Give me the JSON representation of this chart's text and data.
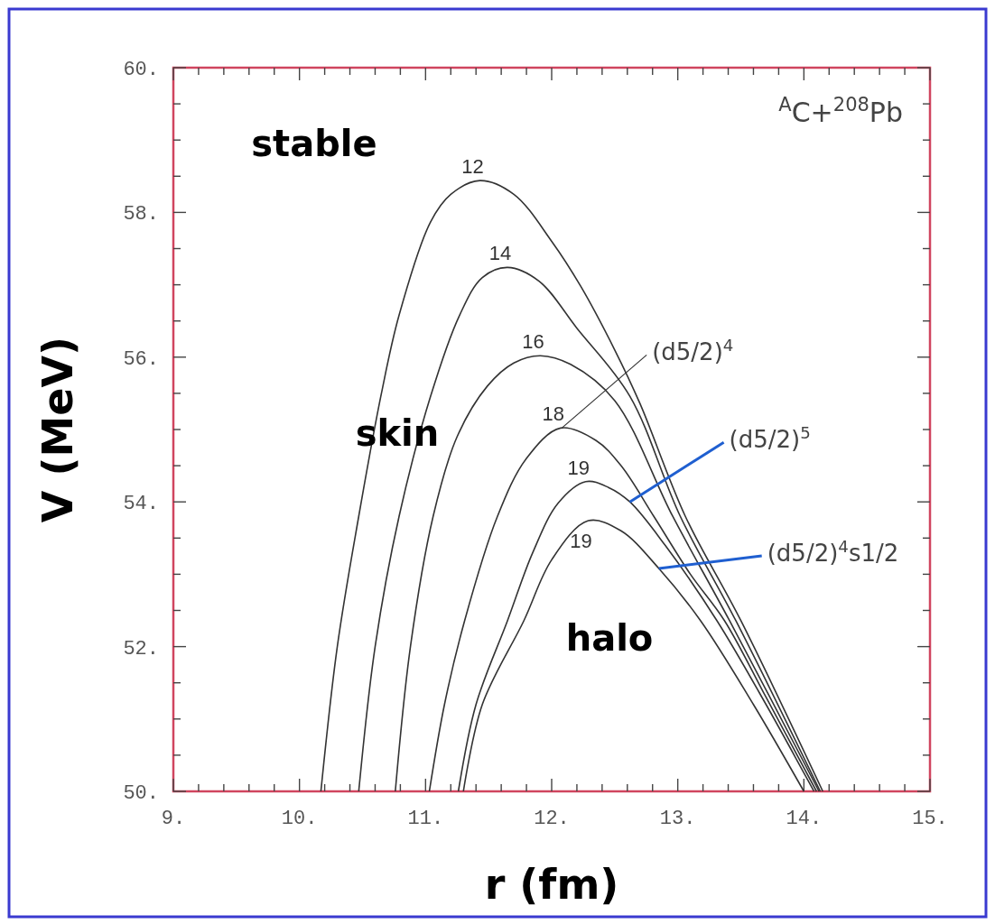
{
  "chart_data": {
    "type": "line",
    "title": "$^{A}$C+$^{208}$Pb",
    "xlabel": "r (fm)",
    "ylabel": "V (MeV)",
    "xlim": [
      9,
      15
    ],
    "ylim": [
      50,
      60
    ],
    "xticks": [
      {
        "value": 9,
        "label": "9."
      },
      {
        "value": 9.2,
        "label": null
      },
      {
        "value": 9.4,
        "label": null
      },
      {
        "value": 9.6,
        "label": null
      },
      {
        "value": 9.8,
        "label": null
      },
      {
        "value": 10,
        "label": "10."
      },
      {
        "value": 10.2,
        "label": null
      },
      {
        "value": 10.4,
        "label": null
      },
      {
        "value": 10.6,
        "label": null
      },
      {
        "value": 10.8,
        "label": null
      },
      {
        "value": 11,
        "label": "11."
      },
      {
        "value": 11.2,
        "label": null
      },
      {
        "value": 11.4,
        "label": null
      },
      {
        "value": 11.6,
        "label": null
      },
      {
        "value": 11.8,
        "label": null
      },
      {
        "value": 12,
        "label": "12."
      },
      {
        "value": 12.2,
        "label": null
      },
      {
        "value": 12.4,
        "label": null
      },
      {
        "value": 12.6,
        "label": null
      },
      {
        "value": 12.8,
        "label": null
      },
      {
        "value": 13,
        "label": "13."
      },
      {
        "value": 13.2,
        "label": null
      },
      {
        "value": 13.4,
        "label": null
      },
      {
        "value": 13.6,
        "label": null
      },
      {
        "value": 13.8,
        "label": null
      },
      {
        "value": 14,
        "label": "14."
      },
      {
        "value": 14.2,
        "label": null
      },
      {
        "value": 14.4,
        "label": null
      },
      {
        "value": 14.6,
        "label": null
      },
      {
        "value": 14.8,
        "label": null
      },
      {
        "value": 15,
        "label": "15."
      }
    ],
    "yticks": [
      {
        "value": 50,
        "label": "50."
      },
      {
        "value": 50.5,
        "label": null
      },
      {
        "value": 51,
        "label": null
      },
      {
        "value": 51.5,
        "label": null
      },
      {
        "value": 52,
        "label": "52."
      },
      {
        "value": 52.5,
        "label": null
      },
      {
        "value": 53,
        "label": null
      },
      {
        "value": 53.5,
        "label": null
      },
      {
        "value": 54,
        "label": "54."
      },
      {
        "value": 54.5,
        "label": null
      },
      {
        "value": 55,
        "label": null
      },
      {
        "value": 55.5,
        "label": null
      },
      {
        "value": 56,
        "label": "56."
      },
      {
        "value": 56.5,
        "label": null
      },
      {
        "value": 57,
        "label": null
      },
      {
        "value": 57.5,
        "label": null
      },
      {
        "value": 58,
        "label": "58."
      },
      {
        "value": 58.5,
        "label": null
      },
      {
        "value": 59,
        "label": null
      },
      {
        "value": 59.5,
        "label": null
      },
      {
        "value": 60,
        "label": "60."
      }
    ],
    "grid": false,
    "marker": "none",
    "line_style": "solid",
    "series": [
      {
        "name": "12",
        "color": "#333333",
        "x": [
          10.17,
          10.3,
          10.47,
          10.65,
          10.79,
          11.04,
          11.2,
          11.43,
          11.7,
          12.0,
          12.23,
          12.5,
          12.7,
          13.06,
          13.5,
          14.15
        ],
        "values": [
          50,
          52,
          53.8,
          55.5,
          56.58,
          57.87,
          58.25,
          58.44,
          58.25,
          57.6,
          56.98,
          56.1,
          55.36,
          53.8,
          52.36,
          50
        ]
      },
      {
        "name": "14",
        "color": "#333333",
        "x": [
          10.47,
          10.6,
          10.79,
          11.04,
          11.27,
          11.45,
          11.65,
          11.9,
          12.2,
          12.62,
          13.02,
          13.46,
          14.13
        ],
        "values": [
          50,
          52,
          53.8,
          55.46,
          56.58,
          57.1,
          57.24,
          57.05,
          56.4,
          55.46,
          53.8,
          52.36,
          50
        ]
      },
      {
        "name": "16",
        "color": "#333333",
        "x": [
          10.76,
          10.88,
          11.06,
          11.25,
          11.49,
          11.7,
          11.91,
          12.15,
          12.5,
          12.96,
          13.41,
          14.12
        ],
        "values": [
          50,
          52,
          53.8,
          54.9,
          55.6,
          55.92,
          56.02,
          55.9,
          55.4,
          53.8,
          52.36,
          50
        ]
      },
      {
        "name": "18",
        "color": "#333333",
        "x": [
          11.03,
          11.15,
          11.31,
          11.57,
          11.8,
          12.07,
          12.35,
          12.55,
          12.81,
          13.1,
          13.37,
          13.7,
          14.1
        ],
        "values": [
          50,
          51.2,
          52.36,
          53.8,
          54.6,
          55.02,
          54.85,
          54.5,
          53.8,
          53.0,
          52.36,
          51.3,
          50
        ]
      },
      {
        "name": "19",
        "color": "#333333",
        "x": [
          11.26,
          11.4,
          11.65,
          11.85,
          12.05,
          12.27,
          12.45,
          12.62,
          12.9,
          13.31,
          13.7,
          14.08
        ],
        "values": [
          50,
          51.2,
          52.36,
          53.3,
          53.98,
          54.28,
          54.2,
          54.0,
          53.4,
          52.36,
          51.2,
          50
        ]
      },
      {
        "name": "19",
        "color": "#333333",
        "x": [
          11.3,
          11.45,
          11.78,
          12.0,
          12.29,
          12.55,
          12.85,
          13.18,
          13.6,
          14.0
        ],
        "values": [
          50,
          51.2,
          52.36,
          53.2,
          53.74,
          53.6,
          53.08,
          52.36,
          51.2,
          50
        ]
      }
    ],
    "annotations": [
      {
        "text": "(d5/2)$^{4}$",
        "x": 12.08,
        "y": 55.02
      },
      {
        "text": "(d5/2)$^{5}$",
        "x": 12.62,
        "y": 54.0
      },
      {
        "text": "(d5/2)$^{4}$s1/2",
        "x": 12.85,
        "y": 53.08
      },
      "stable",
      "skin",
      "halo"
    ]
  }
}
